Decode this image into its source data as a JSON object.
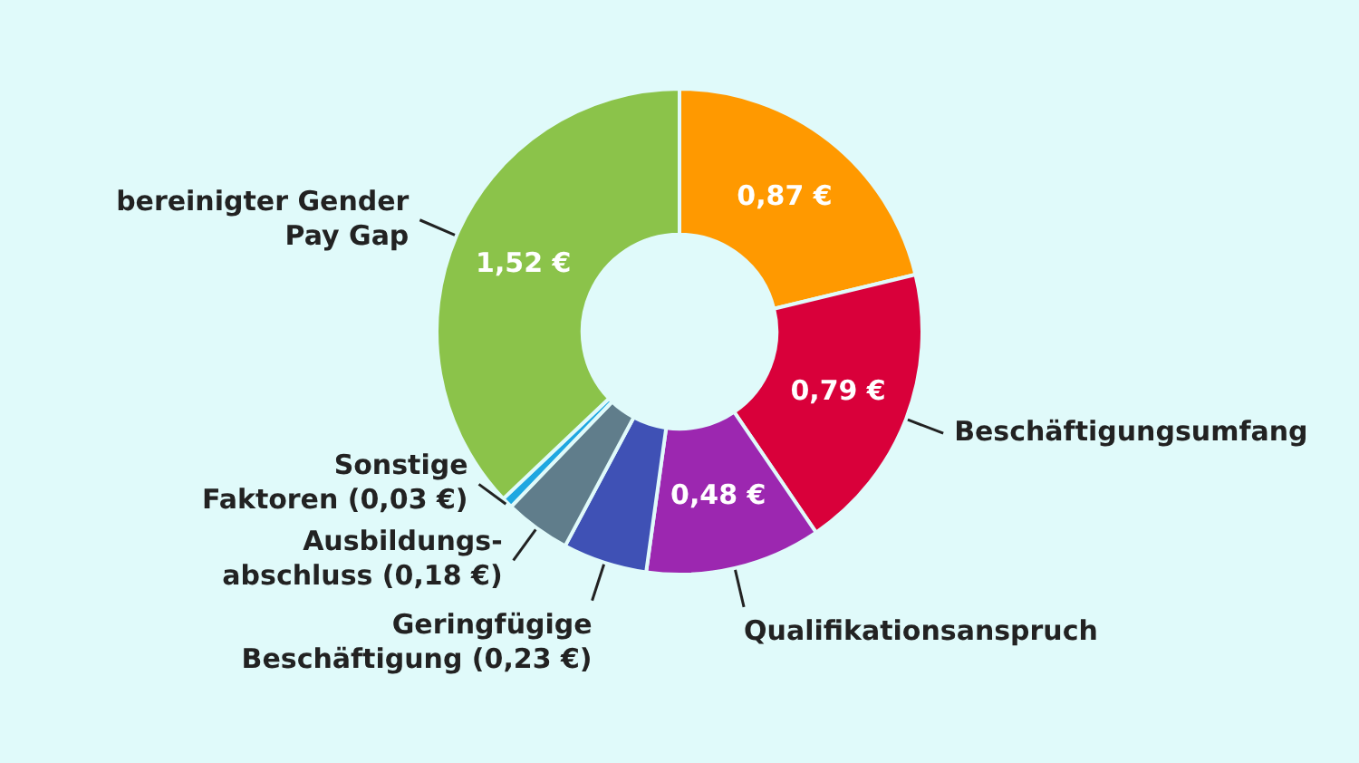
{
  "chart_data": {
    "type": "donut",
    "categories": [
      null,
      "Beschäftigungsumfang",
      "Qualifikationsanspruch",
      "Geringfügige\nBeschäftigung (0,23 €)",
      "Ausbildungs-\nabschluss (0,18 €)",
      "Sonstige\nFaktoren (0,03 €)",
      "bereinigter Gender\nPay Gap"
    ],
    "values": [
      0.87,
      0.79,
      0.48,
      0.23,
      0.18,
      0.03,
      1.52
    ],
    "value_labels": [
      "0,87 €",
      "0,79 €",
      "0,48 €",
      null,
      null,
      null,
      "1,52 €"
    ],
    "colors": [
      "#ff9900",
      "#d9003a",
      "#9c27b0",
      "#3f51b5",
      "#607d8b",
      "#1ea7e1",
      "#8bc34a"
    ],
    "legend": false
  }
}
